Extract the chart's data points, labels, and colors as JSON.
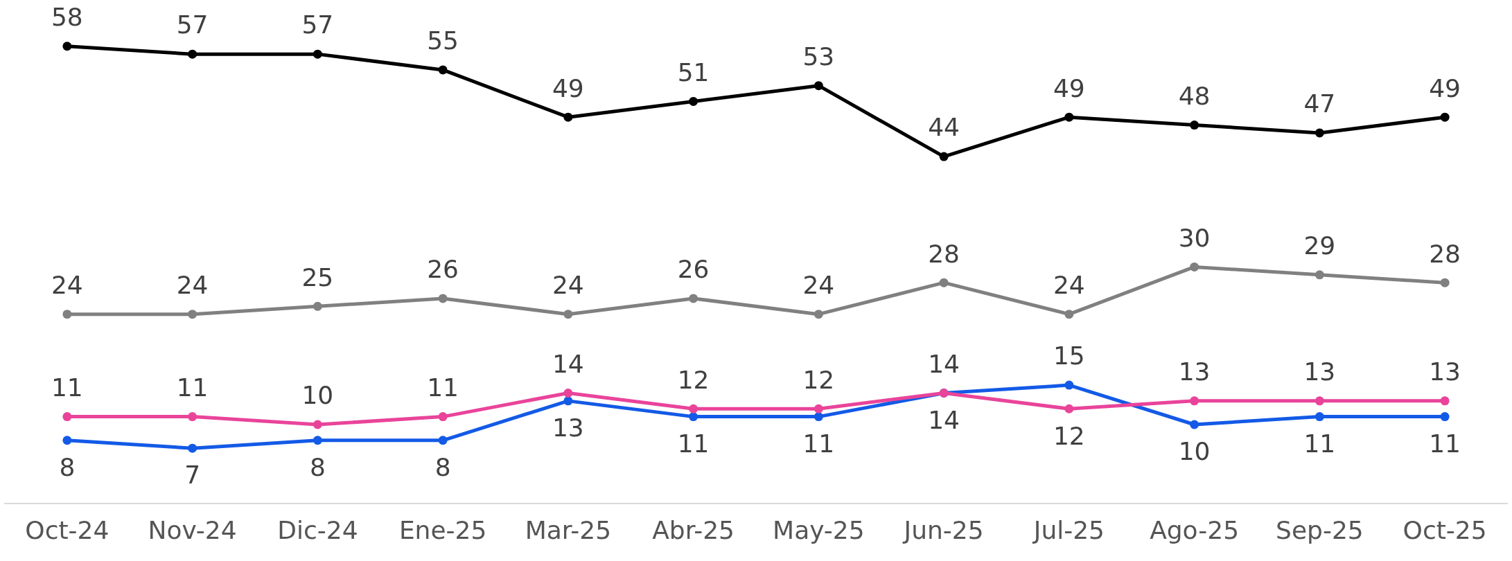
{
  "chart_data": {
    "type": "line",
    "categories": [
      "Oct-24",
      "Nov-24",
      "Dic-24",
      "Ene-25",
      "Mar-25",
      "Abr-25",
      "May-25",
      "Jun-25",
      "Jul-25",
      "Ago-25",
      "Sep-25",
      "Oct-25"
    ],
    "series": [
      {
        "color": "#000000",
        "values": [
          58,
          57,
          57,
          55,
          49,
          51,
          53,
          44,
          49,
          48,
          47,
          49
        ]
      },
      {
        "color": "#808080",
        "values": [
          24,
          24,
          25,
          26,
          24,
          26,
          24,
          28,
          24,
          30,
          29,
          28
        ]
      },
      {
        "color": "#e9449a",
        "values": [
          11,
          11,
          10,
          11,
          14,
          12,
          12,
          14,
          12,
          13,
          13,
          13
        ]
      },
      {
        "color": "#135ae6",
        "values": [
          8,
          7,
          8,
          8,
          13,
          11,
          11,
          14,
          15,
          10,
          11,
          11
        ]
      }
    ],
    "tick_labels": "x",
    "data_labels": true,
    "marker": "circle",
    "line_style": "solid"
  }
}
